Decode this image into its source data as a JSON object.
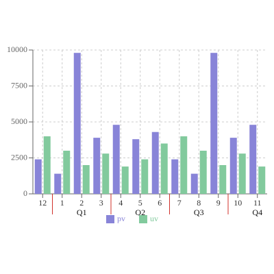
{
  "chart_data": {
    "type": "bar",
    "categories": [
      "12",
      "1",
      "2",
      "3",
      "4",
      "5",
      "6",
      "7",
      "8",
      "9",
      "10",
      "11"
    ],
    "quarters": [
      "Q1",
      "Q2",
      "Q3",
      "Q4"
    ],
    "series": [
      {
        "name": "pv",
        "color": "#8884d8",
        "values": [
          2400,
          1400,
          9800,
          3900,
          4800,
          3800,
          4300,
          2400,
          1400,
          9800,
          3900,
          4800
        ]
      },
      {
        "name": "uv",
        "color": "#82ca9d",
        "values": [
          4000,
          3000,
          2000,
          2800,
          1900,
          2400,
          3500,
          4000,
          3000,
          2000,
          2800,
          1900
        ]
      }
    ],
    "ylim": [
      0,
      10000
    ],
    "yticks": [
      0,
      2500,
      5000,
      7500,
      10000
    ],
    "grid": true,
    "legend": "bottom"
  }
}
